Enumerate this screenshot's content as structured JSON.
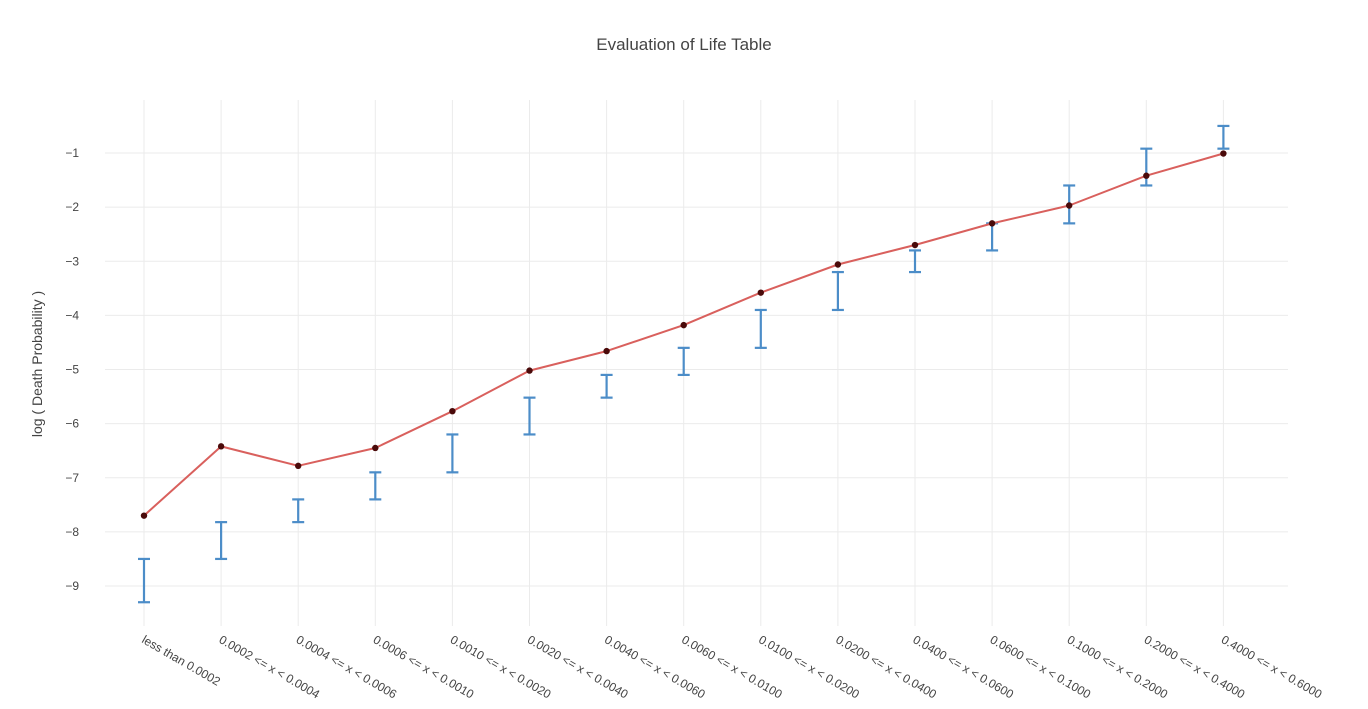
{
  "chart_data": {
    "type": "line",
    "title": "Evaluation of Life Table",
    "xlabel": "",
    "ylabel": "log ( Death Probability )",
    "categories": [
      "less than 0.0002",
      "0.0002 <= x < 0.0004",
      "0.0004 <= x < 0.0006",
      "0.0006 <= x < 0.0010",
      "0.0010 <= x < 0.0020",
      "0.0020 <= x < 0.0040",
      "0.0040 <= x < 0.0060",
      "0.0060 <= x < 0.0100",
      "0.0100 <= x < 0.0200",
      "0.0200 <= x < 0.0400",
      "0.0400 <= x < 0.0600",
      "0.0600 <= x < 0.1000",
      "0.1000 <= x < 0.2000",
      "0.2000 <= x < 0.4000",
      "0.4000 <= x < 0.6000"
    ],
    "ylim": [
      -9.9,
      -0.1
    ],
    "yticks": [
      -9,
      -8,
      -7,
      -6,
      -5,
      -4,
      -3,
      -2,
      -1
    ],
    "grid": true,
    "series": [
      {
        "type": "line",
        "color": "#d9605d",
        "marker_color": "#4a0a0a",
        "values": [
          -7.7,
          -6.42,
          -6.78,
          -6.45,
          -5.77,
          -5.02,
          -4.66,
          -4.18,
          -3.58,
          -3.06,
          -2.7,
          -2.3,
          -1.97,
          -1.42,
          -1.01
        ]
      },
      {
        "type": "errorbar",
        "color": "#4c8dc8",
        "intervals": [
          [
            -9.3,
            -8.5
          ],
          [
            -8.5,
            -7.82
          ],
          [
            -7.82,
            -7.4
          ],
          [
            -7.4,
            -6.9
          ],
          [
            -6.9,
            -6.2
          ],
          [
            -6.2,
            -5.52
          ],
          [
            -5.52,
            -5.1
          ],
          [
            -5.1,
            -4.6
          ],
          [
            -4.6,
            -3.9
          ],
          [
            -3.9,
            -3.2
          ],
          [
            -3.2,
            -2.8
          ],
          [
            -2.8,
            -2.3
          ],
          [
            -2.3,
            -1.6
          ],
          [
            -1.6,
            -0.92
          ],
          [
            -0.92,
            -0.5
          ]
        ]
      }
    ]
  }
}
